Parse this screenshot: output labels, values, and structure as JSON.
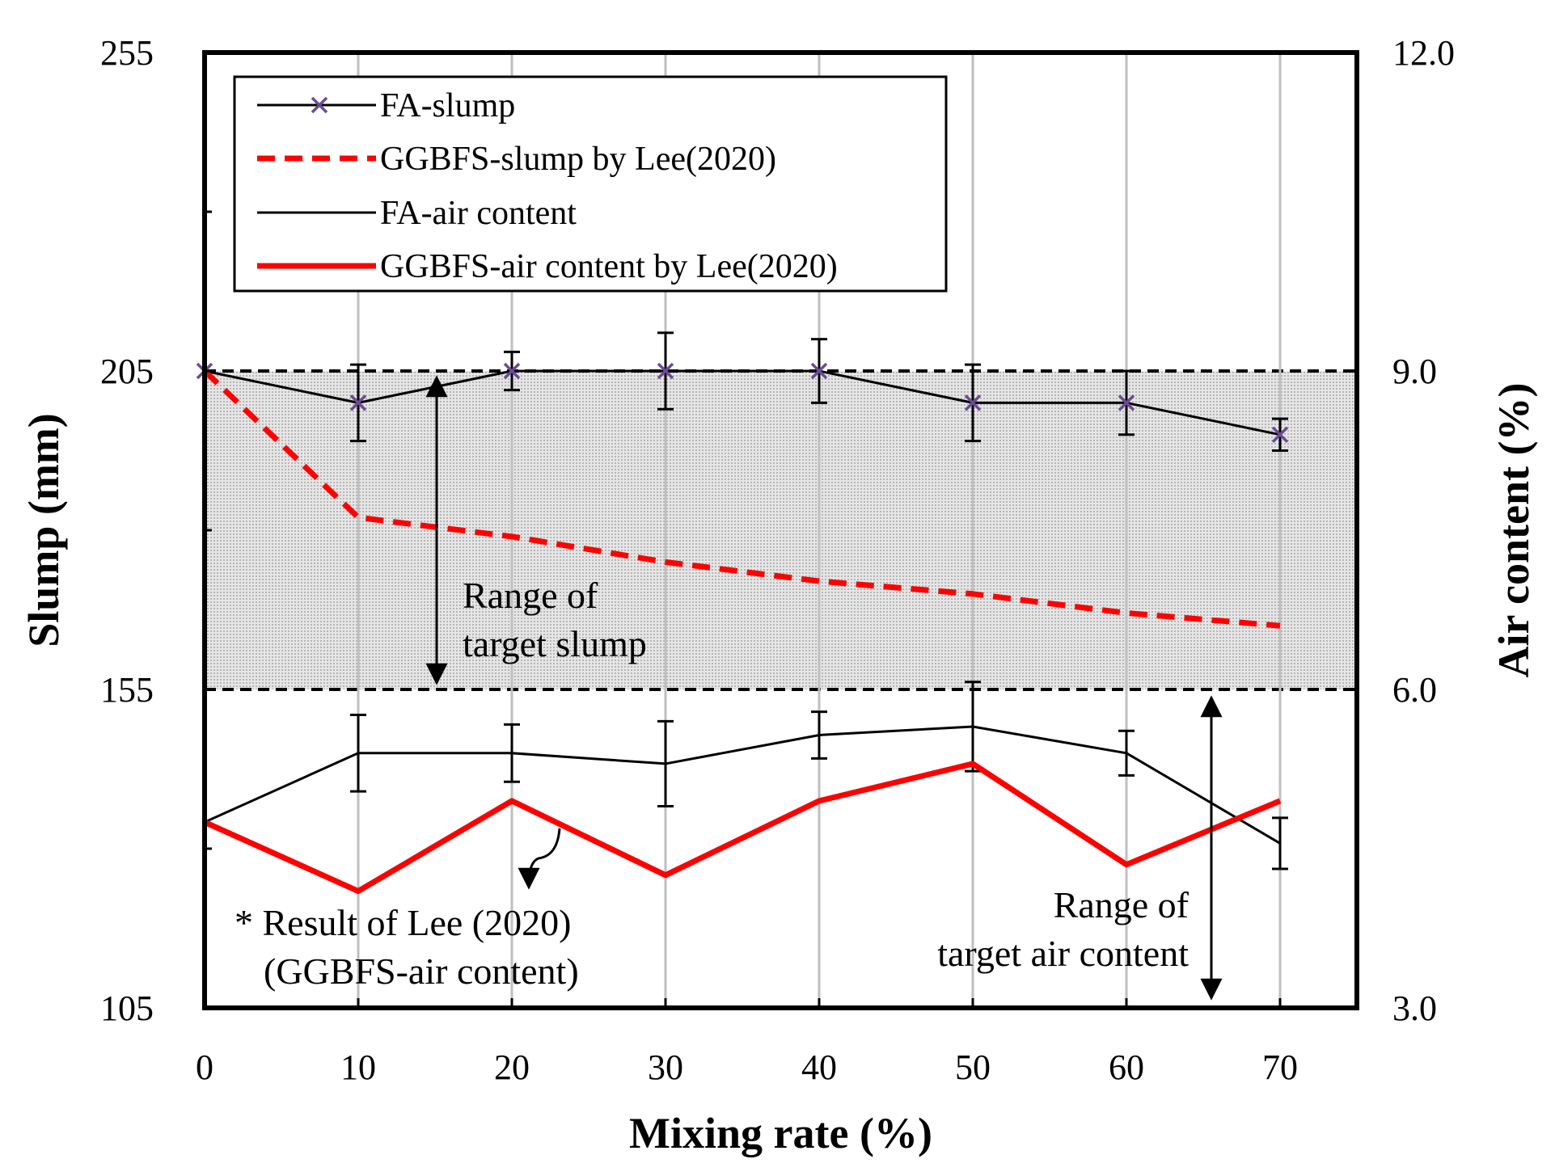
{
  "chart_data": {
    "type": "line",
    "title": "",
    "xlabel": "Mixing rate (%)",
    "ylabel_left": "Slump (mm)",
    "ylabel_right": "Air content (%)",
    "x": [
      0,
      10,
      20,
      30,
      40,
      50,
      60,
      70
    ],
    "x_ticks": [
      "0",
      "10",
      "20",
      "30",
      "40",
      "50",
      "60",
      "70"
    ],
    "xlim": [
      0,
      75
    ],
    "ylim_left": [
      105,
      255
    ],
    "yticks_left": [
      "105",
      "155",
      "205",
      "255"
    ],
    "ylim_right": [
      3.0,
      12.0
    ],
    "yticks_right": [
      "3.0",
      "6.0",
      "9.0",
      "12.0"
    ],
    "grid": "vertical",
    "target_slump_band": [
      155,
      205
    ],
    "series": [
      {
        "name": "FA-slump",
        "axis": "left",
        "values": [
          205,
          200,
          205,
          205,
          205,
          200,
          200,
          195
        ],
        "errors": [
          0,
          6,
          3,
          6,
          5,
          6,
          5,
          2.5
        ],
        "color": "#000000",
        "marker_color": "#6a4c93",
        "style": "solid-x"
      },
      {
        "name": "GGBFS-slump by Lee(2020)",
        "axis": "left",
        "values": [
          205,
          182,
          179,
          175,
          172,
          170,
          167,
          165
        ],
        "color": "#ff0000",
        "style": "dashed"
      },
      {
        "name": "FA-air content",
        "axis": "right",
        "values": [
          4.75,
          5.4,
          5.4,
          5.3,
          5.57,
          5.65,
          5.4,
          4.55
        ],
        "errors": [
          0,
          0.36,
          0.27,
          0.4,
          0.22,
          0.42,
          0.21,
          0.24
        ],
        "color": "#000000",
        "style": "solid-thin"
      },
      {
        "name": "GGBFS-air content by Lee(2020)",
        "axis": "right",
        "values": [
          4.75,
          4.1,
          4.95,
          4.25,
          4.95,
          5.3,
          4.35,
          4.95
        ],
        "color": "#ff0000",
        "style": "solid-thick"
      }
    ],
    "annotations": {
      "slump_range_line1": "Range of",
      "slump_range_line2": "target slump",
      "air_range_line1": "Range of",
      "air_range_line2": "target air content",
      "lee_note_line1": "* Result of Lee (2020)",
      "lee_note_line2": "(GGBFS-air content)"
    },
    "legend_position": "top-left"
  },
  "colors": {
    "band_fill": "#dcdcdc",
    "grid": "#bfbfbf",
    "red": "#ff0000",
    "marker": "#6a4c93"
  }
}
